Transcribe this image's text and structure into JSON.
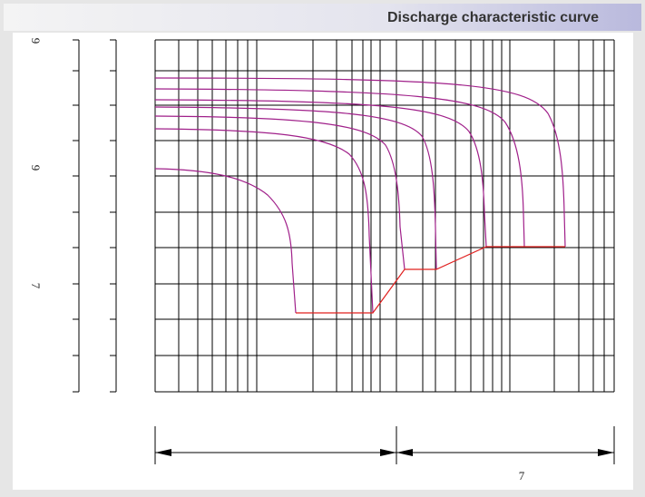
{
  "header": {
    "title": "Discharge characteristic curve"
  },
  "left_labels": [
    "9",
    "9",
    "7"
  ],
  "bottom_label": "7"
}
